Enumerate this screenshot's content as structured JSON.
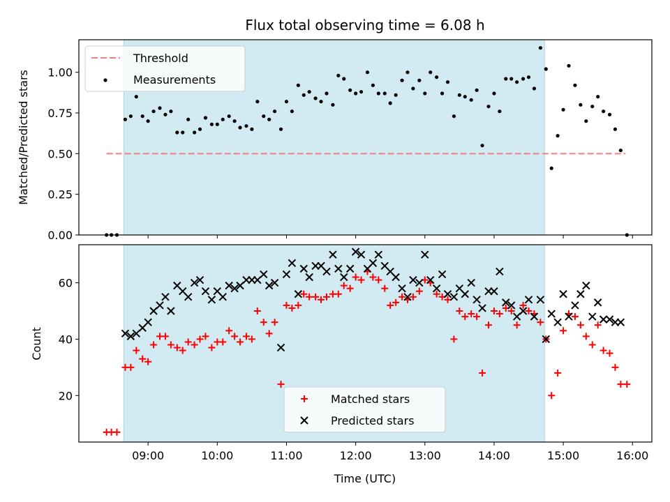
{
  "chart_data": {
    "title": "Flux total observing time = 6.08 h",
    "xlabel": "Time (UTC)",
    "x_ticks": [
      "09:00",
      "10:00",
      "11:00",
      "12:00",
      "13:00",
      "14:00",
      "15:00",
      "16:00"
    ],
    "x_tick_hours": [
      9,
      10,
      11,
      12,
      13,
      14,
      15,
      16
    ],
    "xlim": [
      8.0,
      16.28
    ],
    "shaded_interval": [
      8.65,
      14.73
    ],
    "shaded_color": "#add8e6",
    "top": {
      "type": "scatter",
      "ylabel": "Matched/Predicted stars",
      "ylim": [
        0,
        1.2
      ],
      "y_ticks": [
        "0.00",
        "0.25",
        "0.50",
        "0.75",
        "1.00"
      ],
      "y_tick_values": [
        0,
        0.25,
        0.5,
        0.75,
        1.0
      ],
      "threshold": {
        "name": "Threshold",
        "y": 0.5,
        "x_range": [
          8.4,
          15.9
        ],
        "color": "#f08080"
      },
      "measurements_name": "Measurements",
      "measurements_color": "#000000",
      "measurements": [
        [
          8.4,
          0
        ],
        [
          8.47,
          0
        ],
        [
          8.55,
          0
        ],
        [
          8.67,
          0.71
        ],
        [
          8.75,
          0.73
        ],
        [
          8.83,
          0.85
        ],
        [
          8.92,
          0.73
        ],
        [
          9.0,
          0.7
        ],
        [
          9.08,
          0.76
        ],
        [
          9.17,
          0.78
        ],
        [
          9.25,
          0.74
        ],
        [
          9.33,
          0.76
        ],
        [
          9.42,
          0.63
        ],
        [
          9.5,
          0.63
        ],
        [
          9.58,
          0.71
        ],
        [
          9.67,
          0.63
        ],
        [
          9.75,
          0.65
        ],
        [
          9.83,
          0.72
        ],
        [
          9.92,
          0.68
        ],
        [
          10.0,
          0.68
        ],
        [
          10.08,
          0.71
        ],
        [
          10.17,
          0.73
        ],
        [
          10.25,
          0.7
        ],
        [
          10.33,
          0.66
        ],
        [
          10.42,
          0.67
        ],
        [
          10.5,
          0.65
        ],
        [
          10.58,
          0.82
        ],
        [
          10.67,
          0.73
        ],
        [
          10.75,
          0.71
        ],
        [
          10.83,
          0.76
        ],
        [
          10.92,
          0.65
        ],
        [
          11.0,
          0.82
        ],
        [
          11.08,
          0.76
        ],
        [
          11.17,
          0.92
        ],
        [
          11.25,
          0.86
        ],
        [
          11.33,
          0.88
        ],
        [
          11.42,
          0.84
        ],
        [
          11.5,
          0.82
        ],
        [
          11.58,
          0.87
        ],
        [
          11.67,
          0.8
        ],
        [
          11.75,
          0.98
        ],
        [
          11.83,
          0.96
        ],
        [
          11.92,
          0.89
        ],
        [
          12.0,
          0.87
        ],
        [
          12.08,
          0.88
        ],
        [
          12.17,
          1.0
        ],
        [
          12.25,
          0.92
        ],
        [
          12.33,
          0.87
        ],
        [
          12.42,
          0.87
        ],
        [
          12.5,
          0.81
        ],
        [
          12.58,
          0.86
        ],
        [
          12.67,
          0.95
        ],
        [
          12.75,
          1.0
        ],
        [
          12.83,
          0.9
        ],
        [
          12.92,
          0.95
        ],
        [
          13.0,
          0.87
        ],
        [
          13.08,
          1.0
        ],
        [
          13.17,
          0.97
        ],
        [
          13.25,
          0.87
        ],
        [
          13.33,
          0.94
        ],
        [
          13.42,
          0.73
        ],
        [
          13.5,
          0.86
        ],
        [
          13.58,
          0.85
        ],
        [
          13.67,
          0.83
        ],
        [
          13.75,
          0.89
        ],
        [
          13.83,
          0.55
        ],
        [
          13.92,
          0.79
        ],
        [
          14.0,
          0.87
        ],
        [
          14.08,
          0.76
        ],
        [
          14.17,
          0.96
        ],
        [
          14.25,
          0.96
        ],
        [
          14.33,
          0.94
        ],
        [
          14.42,
          0.96
        ],
        [
          14.5,
          0.97
        ],
        [
          14.58,
          0.9
        ],
        [
          14.67,
          1.15
        ],
        [
          14.75,
          1.02
        ],
        [
          14.83,
          0.41
        ],
        [
          14.92,
          0.61
        ],
        [
          15.0,
          0.77
        ],
        [
          15.08,
          1.04
        ],
        [
          15.17,
          0.92
        ],
        [
          15.25,
          0.8
        ],
        [
          15.33,
          0.7
        ],
        [
          15.42,
          0.79
        ],
        [
          15.5,
          0.85
        ],
        [
          15.58,
          0.76
        ],
        [
          15.67,
          0.74
        ],
        [
          15.75,
          0.65
        ],
        [
          15.83,
          0.52
        ],
        [
          15.92,
          0.0
        ]
      ]
    },
    "bottom": {
      "type": "scatter",
      "ylabel": "Count",
      "ylim": [
        3.5,
        73.5
      ],
      "y_ticks": [
        "20",
        "40",
        "60"
      ],
      "y_tick_values": [
        20,
        40,
        60
      ],
      "series": [
        {
          "name": "Matched stars",
          "marker": "plus",
          "color": "#ff0000",
          "points": [
            [
              8.4,
              7
            ],
            [
              8.47,
              7
            ],
            [
              8.55,
              7
            ],
            [
              8.67,
              30
            ],
            [
              8.75,
              30
            ],
            [
              8.83,
              36
            ],
            [
              8.92,
              33
            ],
            [
              9.0,
              32
            ],
            [
              9.08,
              38
            ],
            [
              9.17,
              41
            ],
            [
              9.25,
              41
            ],
            [
              9.33,
              38
            ],
            [
              9.42,
              37
            ],
            [
              9.5,
              36
            ],
            [
              9.58,
              39
            ],
            [
              9.67,
              38
            ],
            [
              9.75,
              40
            ],
            [
              9.83,
              41
            ],
            [
              9.92,
              37
            ],
            [
              10.0,
              39
            ],
            [
              10.08,
              39
            ],
            [
              10.17,
              43
            ],
            [
              10.25,
              41
            ],
            [
              10.33,
              39
            ],
            [
              10.42,
              41
            ],
            [
              10.5,
              40
            ],
            [
              10.58,
              50
            ],
            [
              10.67,
              46
            ],
            [
              10.75,
              42
            ],
            [
              10.83,
              46
            ],
            [
              10.92,
              24
            ],
            [
              11.0,
              52
            ],
            [
              11.08,
              51
            ],
            [
              11.17,
              52
            ],
            [
              11.25,
              56
            ],
            [
              11.33,
              55
            ],
            [
              11.42,
              55
            ],
            [
              11.5,
              54
            ],
            [
              11.58,
              55
            ],
            [
              11.67,
              56
            ],
            [
              11.75,
              56
            ],
            [
              11.83,
              59
            ],
            [
              11.92,
              58
            ],
            [
              12.0,
              62
            ],
            [
              12.08,
              61
            ],
            [
              12.17,
              64
            ],
            [
              12.25,
              62
            ],
            [
              12.33,
              61
            ],
            [
              12.42,
              58
            ],
            [
              12.5,
              52
            ],
            [
              12.58,
              53
            ],
            [
              12.67,
              55
            ],
            [
              12.75,
              54
            ],
            [
              12.83,
              55
            ],
            [
              12.92,
              57
            ],
            [
              13.0,
              61
            ],
            [
              13.08,
              60
            ],
            [
              13.17,
              56
            ],
            [
              13.25,
              55
            ],
            [
              13.33,
              54
            ],
            [
              13.42,
              40
            ],
            [
              13.5,
              50
            ],
            [
              13.58,
              48
            ],
            [
              13.67,
              49
            ],
            [
              13.75,
              48
            ],
            [
              13.83,
              28
            ],
            [
              13.92,
              45
            ],
            [
              14.0,
              50
            ],
            [
              14.08,
              49
            ],
            [
              14.17,
              51
            ],
            [
              14.25,
              50
            ],
            [
              14.33,
              45
            ],
            [
              14.42,
              52
            ],
            [
              14.5,
              50
            ],
            [
              14.58,
              49
            ],
            [
              14.67,
              46
            ],
            [
              14.75,
              40
            ],
            [
              14.83,
              20
            ],
            [
              14.92,
              28
            ],
            [
              15.0,
              43
            ],
            [
              15.08,
              49
            ],
            [
              15.17,
              48
            ],
            [
              15.25,
              45
            ],
            [
              15.33,
              41
            ],
            [
              15.42,
              38
            ],
            [
              15.5,
              45
            ],
            [
              15.58,
              36
            ],
            [
              15.67,
              35
            ],
            [
              15.75,
              30
            ],
            [
              15.83,
              24
            ],
            [
              15.92,
              24
            ]
          ]
        },
        {
          "name": "Predicted stars",
          "marker": "x",
          "color": "#000000",
          "points": [
            [
              8.67,
              42
            ],
            [
              8.75,
              41
            ],
            [
              8.83,
              42
            ],
            [
              8.92,
              44
            ],
            [
              9.0,
              46
            ],
            [
              9.08,
              50
            ],
            [
              9.17,
              52
            ],
            [
              9.25,
              55
            ],
            [
              9.33,
              50
            ],
            [
              9.42,
              59
            ],
            [
              9.5,
              57
            ],
            [
              9.58,
              55
            ],
            [
              9.67,
              60
            ],
            [
              9.75,
              61
            ],
            [
              9.83,
              57
            ],
            [
              9.92,
              54
            ],
            [
              10.0,
              57
            ],
            [
              10.08,
              55
            ],
            [
              10.17,
              59
            ],
            [
              10.25,
              58
            ],
            [
              10.33,
              59
            ],
            [
              10.42,
              61
            ],
            [
              10.5,
              61
            ],
            [
              10.58,
              61
            ],
            [
              10.67,
              63
            ],
            [
              10.75,
              59
            ],
            [
              10.83,
              60
            ],
            [
              10.92,
              37
            ],
            [
              11.0,
              63
            ],
            [
              11.08,
              67
            ],
            [
              11.17,
              56
            ],
            [
              11.25,
              65
            ],
            [
              11.33,
              62
            ],
            [
              11.42,
              66
            ],
            [
              11.5,
              66
            ],
            [
              11.58,
              64
            ],
            [
              11.67,
              70
            ],
            [
              11.75,
              65
            ],
            [
              11.83,
              62
            ],
            [
              11.92,
              65
            ],
            [
              12.0,
              71
            ],
            [
              12.08,
              70
            ],
            [
              12.17,
              65
            ],
            [
              12.25,
              67
            ],
            [
              12.33,
              70
            ],
            [
              12.42,
              66
            ],
            [
              12.5,
              64
            ],
            [
              12.58,
              62
            ],
            [
              12.67,
              58
            ],
            [
              12.75,
              55
            ],
            [
              12.83,
              61
            ],
            [
              12.92,
              60
            ],
            [
              13.0,
              70
            ],
            [
              13.08,
              61
            ],
            [
              13.17,
              58
            ],
            [
              13.25,
              63
            ],
            [
              13.33,
              56
            ],
            [
              13.42,
              55
            ],
            [
              13.5,
              58
            ],
            [
              13.58,
              56
            ],
            [
              13.67,
              60
            ],
            [
              13.75,
              54
            ],
            [
              13.83,
              51
            ],
            [
              13.92,
              57
            ],
            [
              14.0,
              57
            ],
            [
              14.08,
              64
            ],
            [
              14.17,
              53
            ],
            [
              14.25,
              52
            ],
            [
              14.33,
              48
            ],
            [
              14.42,
              50
            ],
            [
              14.5,
              54
            ],
            [
              14.58,
              48
            ],
            [
              14.67,
              54
            ],
            [
              14.75,
              40
            ],
            [
              14.83,
              49
            ],
            [
              14.92,
              46
            ],
            [
              15.0,
              56
            ],
            [
              15.08,
              48
            ],
            [
              15.17,
              52
            ],
            [
              15.25,
              56
            ],
            [
              15.33,
              59
            ],
            [
              15.42,
              48
            ],
            [
              15.5,
              53
            ],
            [
              15.58,
              47
            ],
            [
              15.67,
              47
            ],
            [
              15.75,
              46
            ],
            [
              15.83,
              46
            ]
          ]
        }
      ]
    }
  }
}
